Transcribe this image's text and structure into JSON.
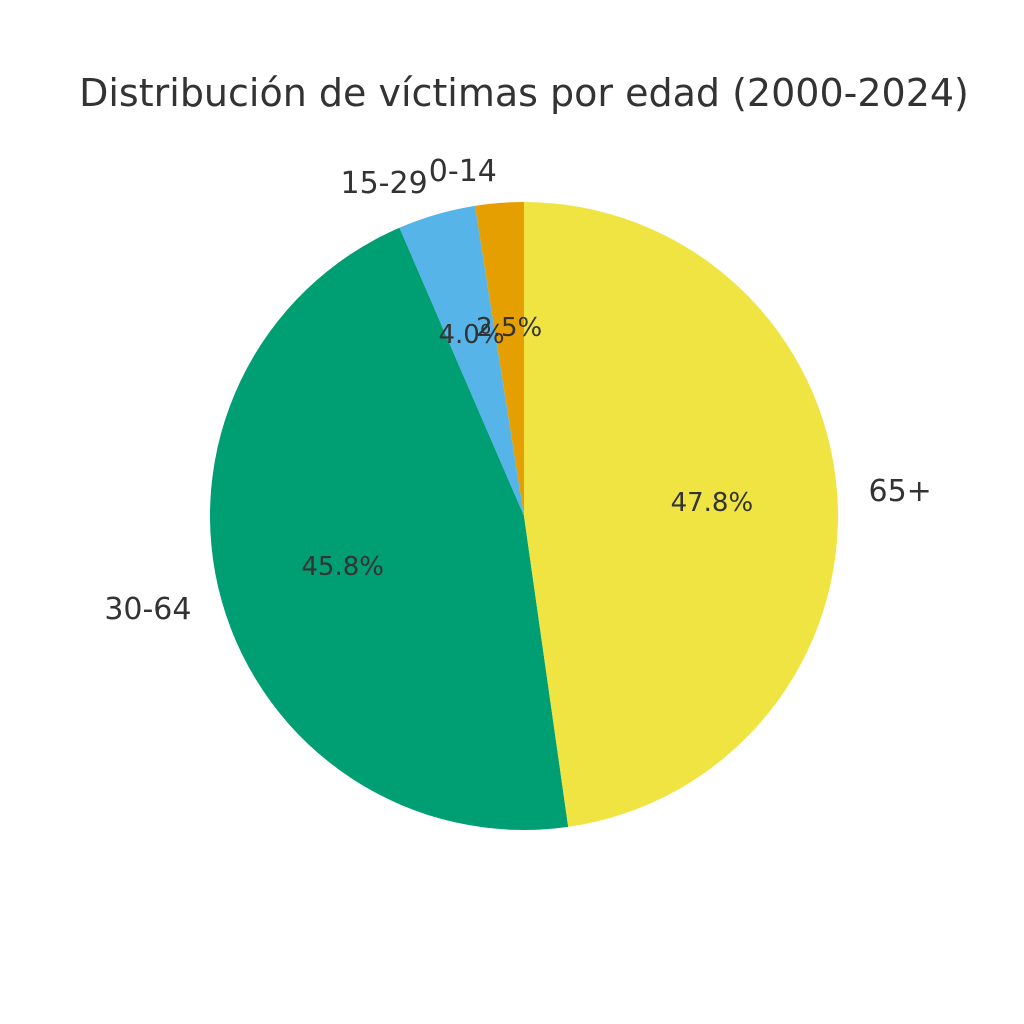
{
  "chart_data": {
    "type": "pie",
    "title": "Distribución de víctimas por edad (2000-2024)",
    "categories": [
      "0-14",
      "15-29",
      "30-64",
      "65+"
    ],
    "values": [
      2.5,
      4.0,
      45.8,
      47.8
    ],
    "pct_labels": [
      "2.5%",
      "4.0%",
      "45.8%",
      "47.8%"
    ],
    "slice_colors": [
      "#E69F00",
      "#56B4E9",
      "#009E73",
      "#F0E442"
    ],
    "start_angle": 90,
    "direction": "counterclockwise",
    "label_distance": 1.1,
    "pct_distance": 0.6,
    "text_color": "#333333",
    "background_color": "#ffffff",
    "legend": "none"
  }
}
